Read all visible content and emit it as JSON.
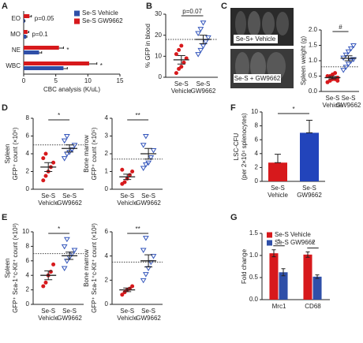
{
  "photo_panel": {
    "panel": "C",
    "labels": [
      "Se-S+ Vehicle",
      "Se-S + GW9662"
    ]
  },
  "chart_data": [
    {
      "type": "hbar",
      "panel": "A",
      "xlabel": "CBC analysis (K/uL)",
      "categories": [
        "EO",
        "MO",
        "NE",
        "WBC"
      ],
      "series": [
        {
          "name": "Se-S Vehicle",
          "color": "#2f4fa8",
          "values": [
            0.15,
            0.4,
            2.4,
            6.2
          ],
          "errors": [
            0.05,
            0.1,
            0.4,
            0.6
          ]
        },
        {
          "name": "Se-S GW9662",
          "color": "#d7191c",
          "values": [
            0.9,
            0.6,
            5.5,
            10.2
          ],
          "errors": [
            0.3,
            0.2,
            0.7,
            1.2
          ]
        }
      ],
      "annotations": [
        "p=0.05",
        "p=0.1",
        "*",
        "*"
      ],
      "xlim": [
        0,
        15
      ],
      "xticks": [
        0,
        5,
        10,
        15
      ]
    },
    {
      "type": "strip",
      "panel": "B",
      "ylabel": [
        "% GFP in blood"
      ],
      "categories": [
        [
          "Se-S",
          "Vehicle"
        ],
        [
          "Se-S",
          "GW9662"
        ]
      ],
      "series": [
        {
          "name": "Se-S Vehicle",
          "color": "#d7191c",
          "marker": "circle",
          "values": [
            2,
            4,
            5,
            7,
            9,
            11,
            13,
            15
          ],
          "mean": 8.3,
          "error": 2
        },
        {
          "name": "Se-S GW9662",
          "color": "#3355bb",
          "marker": "triangle",
          "values": [
            11,
            13,
            15,
            17,
            19,
            21,
            23,
            26
          ],
          "mean": 18,
          "error": 2
        }
      ],
      "ref_line": 18,
      "annotation": "p=0.07",
      "ylim": [
        0,
        30
      ],
      "yticks": [
        0,
        10,
        20,
        30
      ]
    },
    {
      "type": "strip",
      "ylabel": [
        "Spleen weight (g)"
      ],
      "categories": [
        [
          "Se-S",
          "Vehicle"
        ],
        [
          "Se-S",
          "GW9662"
        ]
      ],
      "series": [
        {
          "name": "Se-S Vehicle",
          "color": "#d7191c",
          "marker": "circle",
          "values": [
            0.3,
            0.35,
            0.4,
            0.4,
            0.45,
            0.5,
            0.5,
            0.55,
            0.6,
            0.35
          ],
          "mean": 0.45,
          "error": 0.04
        },
        {
          "name": "Se-S GW9662",
          "color": "#3355bb",
          "marker": "triangle",
          "values": [
            0.7,
            0.8,
            0.9,
            1.0,
            1.05,
            1.1,
            1.2,
            1.3,
            1.4,
            1.5
          ],
          "mean": 1.08,
          "error": 0.08
        }
      ],
      "ref_line": 0.8,
      "annotation": "#",
      "ylim": [
        0,
        2
      ],
      "yticks": [
        {
          "value": 0,
          "label": "0.0"
        },
        {
          "value": 0.5,
          "label": "0.5"
        },
        {
          "value": 1,
          "label": "1.0"
        },
        {
          "value": 1.5,
          "label": "1.5"
        },
        {
          "value": 2,
          "label": "2.0"
        }
      ]
    },
    {
      "type": "strip",
      "panel": "D",
      "ylabel": [
        "Spleen",
        "GFP⁺ count (×10⁶)"
      ],
      "categories": [
        [
          "Se-S",
          "Vehicle"
        ],
        [
          "Se-S",
          "GW9662"
        ]
      ],
      "series": [
        {
          "name": "Se-S Vehicle",
          "color": "#d7191c",
          "marker": "circle",
          "values": [
            1,
            1.5,
            2,
            2.5,
            3,
            3.5,
            4
          ],
          "mean": 2.5,
          "error": 0.5
        },
        {
          "name": "Se-S GW9662",
          "color": "#3355bb",
          "marker": "triangle",
          "values": [
            3.5,
            4,
            4.2,
            4.5,
            5,
            5.5,
            6
          ],
          "mean": 4.6,
          "error": 0.4
        }
      ],
      "ref_line": 5,
      "annotation": "*",
      "ylim": [
        0,
        8
      ],
      "yticks": [
        0,
        2,
        4,
        6,
        8
      ]
    },
    {
      "type": "strip",
      "ylabel": [
        "Bone marrow",
        "GFP⁺ count (×10⁵)"
      ],
      "categories": [
        [
          "Se-S",
          "Vehicle"
        ],
        [
          "Se-S",
          "GW9662"
        ]
      ],
      "series": [
        {
          "name": "Se-S Vehicle",
          "color": "#d7191c",
          "marker": "circle",
          "values": [
            0.3,
            0.4,
            0.6,
            0.8,
            1.0,
            1.1
          ],
          "mean": 0.7,
          "error": 0.15
        },
        {
          "name": "Se-S GW9662",
          "color": "#3355bb",
          "marker": "triangle",
          "values": [
            1.2,
            1.4,
            1.5,
            1.8,
            2.2,
            2.5,
            3.0
          ],
          "mean": 2,
          "error": 0.3
        }
      ],
      "ref_line": 1.7,
      "annotation": "**",
      "ylim": [
        0,
        4
      ],
      "yticks": [
        0,
        1,
        2,
        3,
        4
      ]
    },
    {
      "type": "bar",
      "panel": "F",
      "ylabel": [
        "LSC-CFU",
        "(per 2×10⁴ splenocytes)"
      ],
      "categories": [
        [
          "Se-S",
          "Vehicle"
        ],
        [
          "Se-S",
          "GW9662"
        ]
      ],
      "values": [
        2.7,
        7
      ],
      "errors": [
        1.2,
        1.8
      ],
      "colors": [
        "#d7191c",
        "#2244bb"
      ],
      "annotation": "*",
      "ylim": [
        0,
        10
      ],
      "yticks": [
        0,
        2,
        4,
        6,
        8,
        10
      ]
    },
    {
      "type": "strip",
      "panel": "E",
      "ylabel": [
        "Spleen",
        "GFP⁺ Sca-1⁺c-Kit⁺ count (×10³)"
      ],
      "categories": [
        [
          "Se-S",
          "Vehicle"
        ],
        [
          "Se-S",
          "GW9662"
        ]
      ],
      "series": [
        {
          "name": "Se-S Vehicle",
          "color": "#d7191c",
          "marker": "circle",
          "values": [
            2.5,
            3,
            4,
            4.5,
            5.5
          ],
          "mean": 4,
          "error": 0.6
        },
        {
          "name": "Se-S GW9662",
          "color": "#3355bb",
          "marker": "triangle",
          "values": [
            5,
            6,
            6.5,
            7,
            7.5,
            8,
            9
          ],
          "mean": 6.7,
          "error": 0.5
        }
      ],
      "ref_line": 7,
      "annotation": "*",
      "ylim": [
        0,
        10
      ],
      "yticks": [
        0,
        2,
        4,
        6,
        8,
        10
      ]
    },
    {
      "type": "strip",
      "ylabel": [
        "Bone marrow",
        "GFP⁺ Sca-1⁺c-Kit⁺ count (×10²)"
      ],
      "categories": [
        [
          "Se-S",
          "Vehicle"
        ],
        [
          "Se-S",
          "GW9662"
        ]
      ],
      "series": [
        {
          "name": "Se-S Vehicle",
          "color": "#d7191c",
          "marker": "circle",
          "values": [
            0.8,
            1,
            1.2,
            1.3,
            1.5
          ],
          "mean": 1.2,
          "error": 0.15
        },
        {
          "name": "Se-S GW9662",
          "color": "#3355bb",
          "marker": "triangle",
          "values": [
            2,
            2.5,
            3,
            3.5,
            4,
            4.5,
            5.5
          ],
          "mean": 3.6,
          "error": 0.5
        }
      ],
      "ref_line": 3.5,
      "annotation": "**",
      "ylim": [
        0,
        6
      ],
      "yticks": [
        0,
        2,
        4,
        6
      ]
    },
    {
      "type": "bar",
      "panel": "G",
      "ylabel": [
        "Fold change"
      ],
      "categories": [
        "Mrc1",
        "CD68"
      ],
      "series": [
        {
          "name": "Se-S Vehicle",
          "color": "#d7191c",
          "values": [
            1.05,
            1.02
          ],
          "errors": [
            0.08,
            0.06
          ]
        },
        {
          "name": "Se-S GW9662",
          "color": "#2f4fa8",
          "values": [
            0.62,
            0.52
          ],
          "errors": [
            0.08,
            0.04
          ]
        }
      ],
      "annotations": [
        "*",
        "*"
      ],
      "ylim": [
        0,
        1.5
      ],
      "yticks": [
        {
          "value": 0,
          "label": "0.0"
        },
        {
          "value": 0.5,
          "label": "0.5"
        },
        {
          "value": 1,
          "label": "1.0"
        },
        {
          "value": 1.5,
          "label": "1.5"
        }
      ]
    }
  ]
}
